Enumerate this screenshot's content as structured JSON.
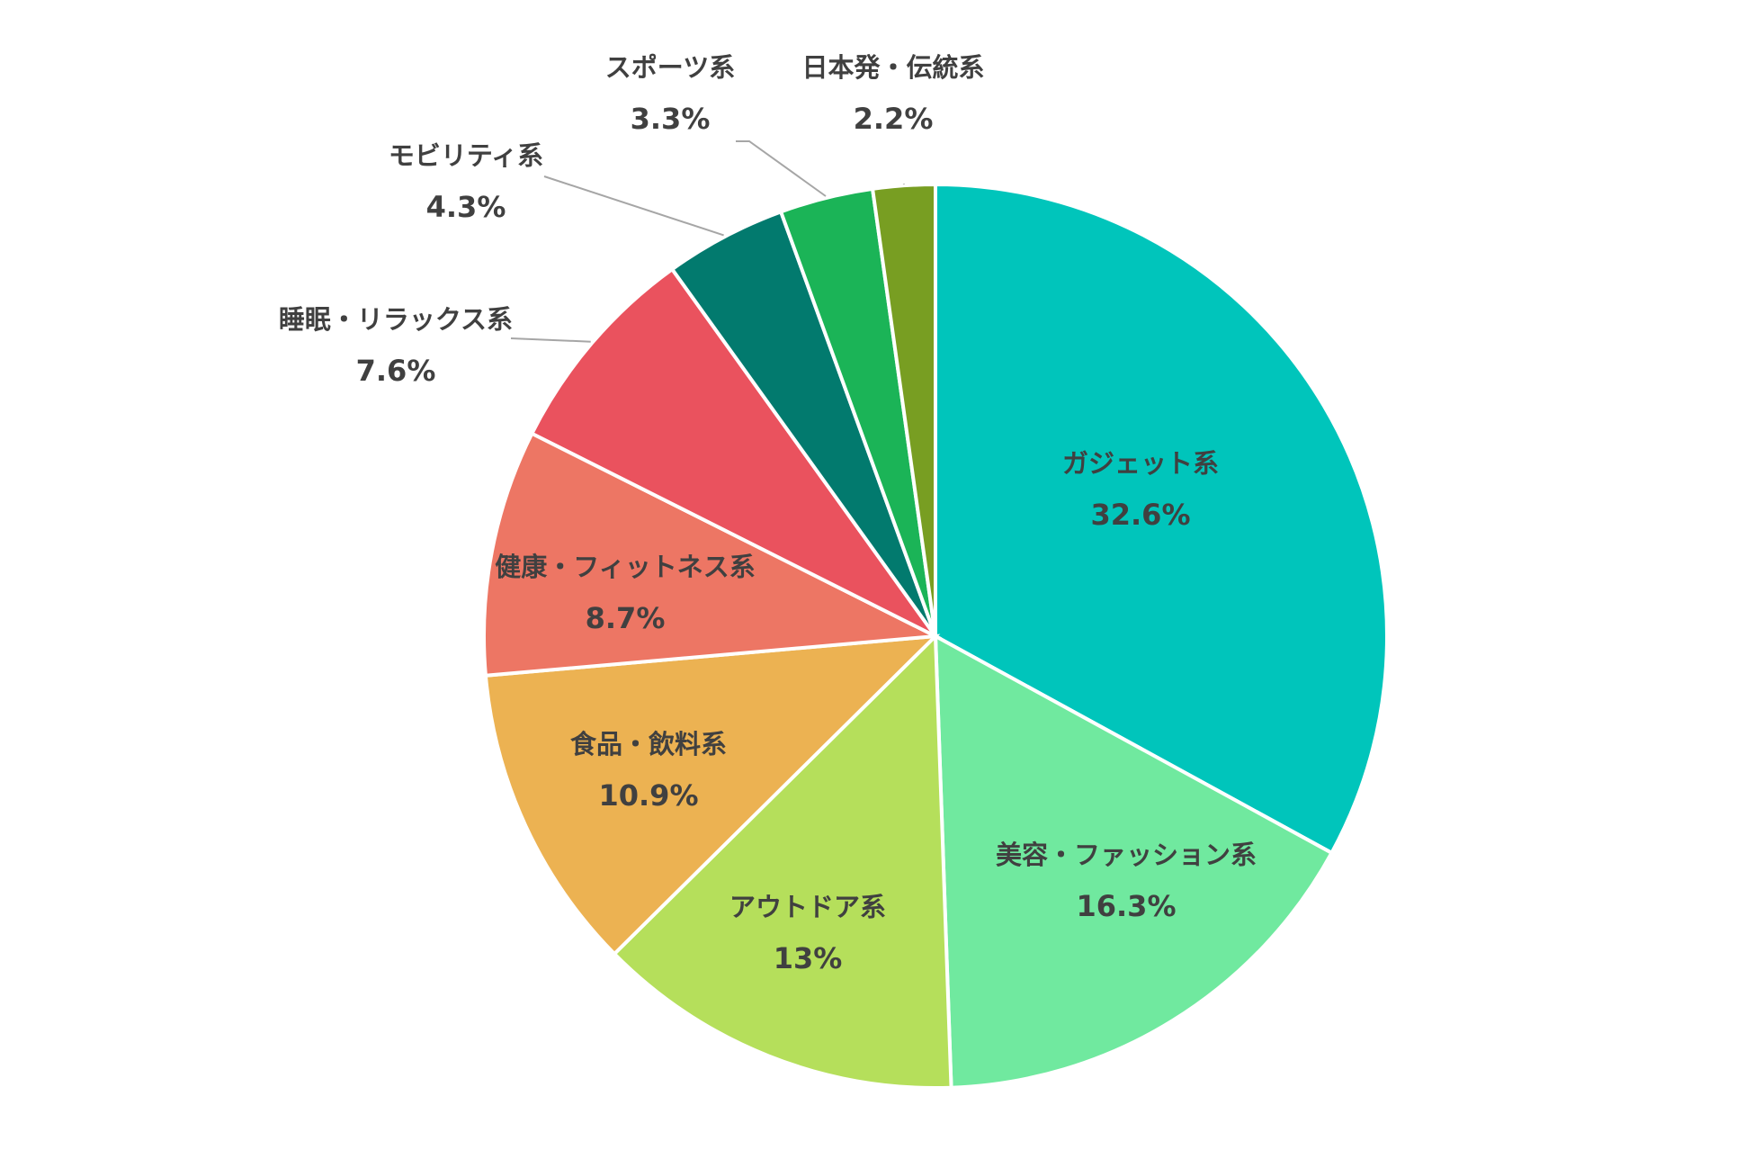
{
  "chart_data": {
    "type": "pie",
    "start_angle": "12 o'clock",
    "direction": "clockwise",
    "slices": [
      {
        "label": "ガジェット系",
        "value": 32.6,
        "value_label": "32.6%",
        "color": "#00c5bb",
        "label_placement": "inside"
      },
      {
        "label": "美容・ファッション系",
        "value": 16.3,
        "value_label": "16.3%",
        "color": "#70e99f",
        "label_placement": "inside"
      },
      {
        "label": "アウトドア系",
        "value": 13,
        "value_label": "13%",
        "color": "#b5df5b",
        "label_placement": "inside"
      },
      {
        "label": "食品・飲料系",
        "value": 10.9,
        "value_label": "10.9%",
        "color": "#ecb252",
        "label_placement": "inside"
      },
      {
        "label": "健康・フィットネス系",
        "value": 8.7,
        "value_label": "8.7%",
        "color": "#ed7664",
        "label_placement": "inside"
      },
      {
        "label": "睡眠・リラックス系",
        "value": 7.6,
        "value_label": "7.6%",
        "color": "#ea525e",
        "label_placement": "outside"
      },
      {
        "label": "モビリティ系",
        "value": 4.3,
        "value_label": "4.3%",
        "color": "#027a6e",
        "label_placement": "outside"
      },
      {
        "label": "スポーツ系",
        "value": 3.3,
        "value_label": "3.3%",
        "color": "#1bb457",
        "label_placement": "outside"
      },
      {
        "label": "日本発・伝統系",
        "value": 2.2,
        "value_label": "2.2%",
        "color": "#789e22",
        "label_placement": "outside"
      }
    ]
  }
}
